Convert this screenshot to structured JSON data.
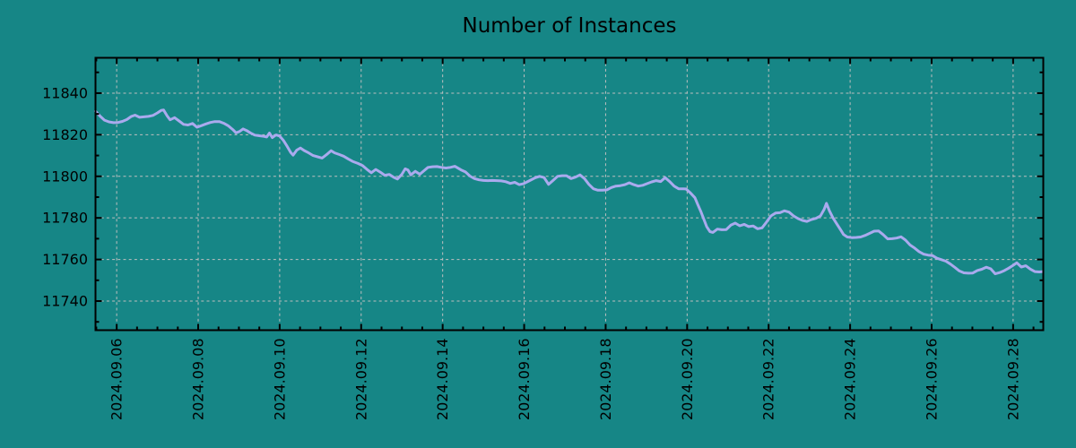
{
  "title": "Number of Instances",
  "colors": {
    "background": "#168686",
    "line": "#aaaaee",
    "grid": "#bfbfbf",
    "axis_and_text": "#000000"
  },
  "chart_data": {
    "type": "line",
    "title": "Number of Instances",
    "xlabel": "",
    "ylabel": "",
    "legend": "none",
    "grid": "dashed gridlines at major ticks, both axes",
    "xlim_days": [
      5.48,
      28.74
    ],
    "ylim": [
      11726,
      11857
    ],
    "y_ticks": {
      "major": [
        11740,
        11760,
        11780,
        11800,
        11820,
        11840
      ],
      "labels": [
        "11740",
        "11760",
        "11780",
        "11800",
        "11820",
        "11840"
      ],
      "minor_step": 10
    },
    "x_ticks": {
      "major_days": [
        6,
        8,
        10,
        12,
        14,
        16,
        18,
        20,
        22,
        24,
        26,
        28
      ],
      "labels": [
        "2024.09.06",
        "2024.09.08",
        "2024.09.10",
        "2024.09.12",
        "2024.09.14",
        "2024.09.16",
        "2024.09.18",
        "2024.09.20",
        "2024.09.22",
        "2024.09.24",
        "2024.09.26",
        "2024.09.28"
      ],
      "minor_step_days": 0.5,
      "label_rotation_deg": -90
    },
    "series": [
      {
        "name": "Number of Instances",
        "x_unit": "day of 2024-09 (fractional)",
        "points": [
          [
            5.48,
            11831.3
          ],
          [
            5.59,
            11829.0
          ],
          [
            5.7,
            11827.0
          ],
          [
            5.81,
            11826.2
          ],
          [
            5.92,
            11825.8
          ],
          [
            6.03,
            11825.9
          ],
          [
            6.14,
            11826.4
          ],
          [
            6.25,
            11827.3
          ],
          [
            6.36,
            11828.8
          ],
          [
            6.45,
            11829.4
          ],
          [
            6.56,
            11828.4
          ],
          [
            6.67,
            11828.6
          ],
          [
            6.78,
            11828.8
          ],
          [
            6.89,
            11829.3
          ],
          [
            7.0,
            11830.5
          ],
          [
            7.09,
            11831.7
          ],
          [
            7.15,
            11831.9
          ],
          [
            7.24,
            11829.0
          ],
          [
            7.31,
            11827.2
          ],
          [
            7.42,
            11828.2
          ],
          [
            7.53,
            11826.6
          ],
          [
            7.64,
            11825.0
          ],
          [
            7.75,
            11824.7
          ],
          [
            7.86,
            11825.4
          ],
          [
            7.97,
            11823.6
          ],
          [
            8.08,
            11824.4
          ],
          [
            8.19,
            11825.2
          ],
          [
            8.3,
            11825.9
          ],
          [
            8.41,
            11826.3
          ],
          [
            8.52,
            11826.3
          ],
          [
            8.63,
            11825.5
          ],
          [
            8.74,
            11824.3
          ],
          [
            8.85,
            11822.5
          ],
          [
            8.93,
            11820.9
          ],
          [
            9.02,
            11821.6
          ],
          [
            9.1,
            11822.8
          ],
          [
            9.19,
            11822.0
          ],
          [
            9.28,
            11820.9
          ],
          [
            9.39,
            11819.8
          ],
          [
            9.5,
            11819.5
          ],
          [
            9.61,
            11819.2
          ],
          [
            9.68,
            11818.9
          ],
          [
            9.75,
            11820.8
          ],
          [
            9.82,
            11818.6
          ],
          [
            9.91,
            11819.9
          ],
          [
            10.0,
            11819.4
          ],
          [
            10.09,
            11817.3
          ],
          [
            10.18,
            11814.5
          ],
          [
            10.27,
            11811.5
          ],
          [
            10.33,
            11810.2
          ],
          [
            10.42,
            11812.6
          ],
          [
            10.51,
            11813.6
          ],
          [
            10.6,
            11812.4
          ],
          [
            10.71,
            11811.3
          ],
          [
            10.82,
            11810.0
          ],
          [
            10.93,
            11809.4
          ],
          [
            11.04,
            11808.8
          ],
          [
            11.15,
            11810.4
          ],
          [
            11.26,
            11812.3
          ],
          [
            11.35,
            11811.3
          ],
          [
            11.46,
            11810.5
          ],
          [
            11.57,
            11809.7
          ],
          [
            11.68,
            11808.4
          ],
          [
            11.79,
            11807.2
          ],
          [
            11.92,
            11806.2
          ],
          [
            12.03,
            11805.2
          ],
          [
            12.14,
            11803.4
          ],
          [
            12.25,
            11801.7
          ],
          [
            12.36,
            11803.3
          ],
          [
            12.47,
            11802.0
          ],
          [
            12.58,
            11800.5
          ],
          [
            12.69,
            11800.9
          ],
          [
            12.8,
            11799.5
          ],
          [
            12.89,
            11798.7
          ],
          [
            13.0,
            11801.0
          ],
          [
            13.08,
            11803.6
          ],
          [
            13.15,
            11803.0
          ],
          [
            13.22,
            11800.7
          ],
          [
            13.33,
            11802.4
          ],
          [
            13.44,
            11801.0
          ],
          [
            13.53,
            11802.5
          ],
          [
            13.64,
            11804.3
          ],
          [
            13.75,
            11804.6
          ],
          [
            13.86,
            11804.7
          ],
          [
            13.97,
            11804.3
          ],
          [
            14.08,
            11804.0
          ],
          [
            14.19,
            11804.3
          ],
          [
            14.3,
            11804.8
          ],
          [
            14.45,
            11803.1
          ],
          [
            14.56,
            11802.1
          ],
          [
            14.67,
            11800.1
          ],
          [
            14.78,
            11798.9
          ],
          [
            14.89,
            11798.3
          ],
          [
            15.0,
            11798.0
          ],
          [
            15.11,
            11797.9
          ],
          [
            15.22,
            11798.0
          ],
          [
            15.33,
            11797.9
          ],
          [
            15.44,
            11797.8
          ],
          [
            15.55,
            11797.4
          ],
          [
            15.66,
            11796.6
          ],
          [
            15.77,
            11797.1
          ],
          [
            15.88,
            11796.0
          ],
          [
            15.99,
            11796.5
          ],
          [
            16.16,
            11798.2
          ],
          [
            16.27,
            11799.3
          ],
          [
            16.38,
            11800.0
          ],
          [
            16.49,
            11799.4
          ],
          [
            16.6,
            11796.1
          ],
          [
            16.71,
            11798.0
          ],
          [
            16.82,
            11800.0
          ],
          [
            16.93,
            11800.3
          ],
          [
            17.04,
            11800.3
          ],
          [
            17.15,
            11798.9
          ],
          [
            17.26,
            11799.6
          ],
          [
            17.37,
            11800.7
          ],
          [
            17.48,
            11798.9
          ],
          [
            17.59,
            11796.1
          ],
          [
            17.7,
            11794.0
          ],
          [
            17.81,
            11793.3
          ],
          [
            17.92,
            11793.3
          ],
          [
            18.03,
            11793.5
          ],
          [
            18.14,
            11794.6
          ],
          [
            18.25,
            11795.3
          ],
          [
            18.36,
            11795.5
          ],
          [
            18.47,
            11796.0
          ],
          [
            18.58,
            11796.9
          ],
          [
            18.69,
            11796.0
          ],
          [
            18.8,
            11795.3
          ],
          [
            18.91,
            11795.7
          ],
          [
            19.02,
            11796.5
          ],
          [
            19.13,
            11797.3
          ],
          [
            19.24,
            11797.9
          ],
          [
            19.35,
            11797.5
          ],
          [
            19.46,
            11799.4
          ],
          [
            19.57,
            11797.5
          ],
          [
            19.68,
            11795.3
          ],
          [
            19.79,
            11794.0
          ],
          [
            19.9,
            11794.0
          ],
          [
            19.97,
            11793.9
          ],
          [
            20.08,
            11792.0
          ],
          [
            20.19,
            11789.7
          ],
          [
            20.26,
            11786.5
          ],
          [
            20.34,
            11782.9
          ],
          [
            20.41,
            11779.3
          ],
          [
            20.48,
            11775.8
          ],
          [
            20.56,
            11773.4
          ],
          [
            20.63,
            11773.0
          ],
          [
            20.74,
            11774.6
          ],
          [
            20.85,
            11774.3
          ],
          [
            20.96,
            11774.4
          ],
          [
            21.07,
            11776.5
          ],
          [
            21.18,
            11777.5
          ],
          [
            21.29,
            11776.2
          ],
          [
            21.4,
            11776.9
          ],
          [
            21.51,
            11775.8
          ],
          [
            21.62,
            11776.1
          ],
          [
            21.73,
            11774.8
          ],
          [
            21.84,
            11775.2
          ],
          [
            21.95,
            11778.0
          ],
          [
            22.06,
            11781.0
          ],
          [
            22.17,
            11782.3
          ],
          [
            22.28,
            11782.5
          ],
          [
            22.39,
            11783.4
          ],
          [
            22.5,
            11782.8
          ],
          [
            22.61,
            11781.0
          ],
          [
            22.72,
            11779.7
          ],
          [
            22.83,
            11778.8
          ],
          [
            22.94,
            11778.3
          ],
          [
            23.05,
            11779.2
          ],
          [
            23.16,
            11779.8
          ],
          [
            23.27,
            11780.9
          ],
          [
            23.36,
            11784.0
          ],
          [
            23.42,
            11787.0
          ],
          [
            23.49,
            11783.5
          ],
          [
            23.58,
            11780.0
          ],
          [
            23.67,
            11777.2
          ],
          [
            23.76,
            11774.5
          ],
          [
            23.84,
            11772.0
          ],
          [
            23.93,
            11770.8
          ],
          [
            24.04,
            11770.5
          ],
          [
            24.15,
            11770.6
          ],
          [
            24.26,
            11770.8
          ],
          [
            24.37,
            11771.6
          ],
          [
            24.48,
            11772.6
          ],
          [
            24.59,
            11773.6
          ],
          [
            24.7,
            11773.7
          ],
          [
            24.81,
            11772.0
          ],
          [
            24.92,
            11769.9
          ],
          [
            25.03,
            11770.0
          ],
          [
            25.14,
            11770.3
          ],
          [
            25.25,
            11770.9
          ],
          [
            25.36,
            11769.3
          ],
          [
            25.47,
            11767.0
          ],
          [
            25.58,
            11765.5
          ],
          [
            25.69,
            11763.8
          ],
          [
            25.8,
            11762.6
          ],
          [
            25.91,
            11762.1
          ],
          [
            26.02,
            11761.9
          ],
          [
            26.13,
            11760.6
          ],
          [
            26.24,
            11759.9
          ],
          [
            26.35,
            11759.2
          ],
          [
            26.46,
            11757.8
          ],
          [
            26.57,
            11756.2
          ],
          [
            26.68,
            11754.5
          ],
          [
            26.79,
            11753.6
          ],
          [
            26.9,
            11753.4
          ],
          [
            27.01,
            11753.5
          ],
          [
            27.12,
            11754.7
          ],
          [
            27.23,
            11755.3
          ],
          [
            27.34,
            11756.3
          ],
          [
            27.45,
            11755.5
          ],
          [
            27.56,
            11753.1
          ],
          [
            27.67,
            11753.7
          ],
          [
            27.78,
            11754.6
          ],
          [
            27.89,
            11755.8
          ],
          [
            28.0,
            11757.2
          ],
          [
            28.09,
            11758.4
          ],
          [
            28.2,
            11756.4
          ],
          [
            28.31,
            11757.0
          ],
          [
            28.42,
            11755.4
          ],
          [
            28.53,
            11754.2
          ],
          [
            28.64,
            11754.0
          ],
          [
            28.73,
            11754.2
          ]
        ]
      }
    ]
  }
}
